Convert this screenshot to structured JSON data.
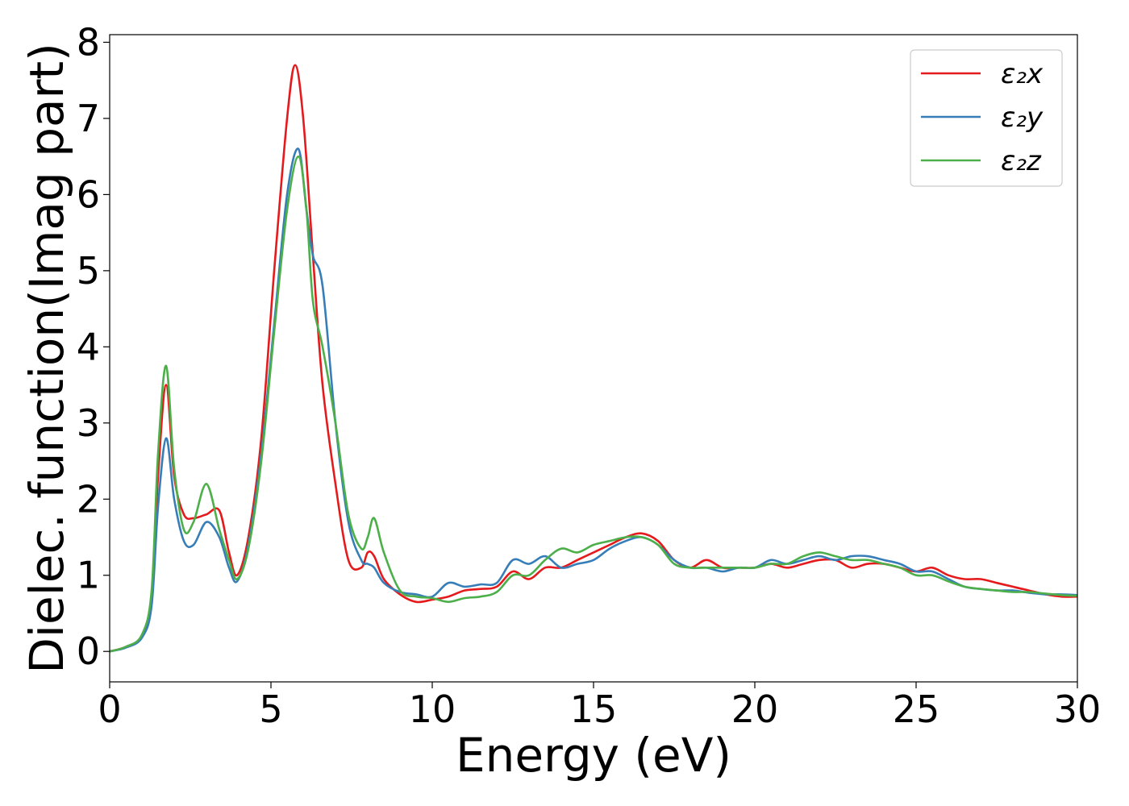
{
  "chart_data": {
    "type": "line",
    "title": "",
    "xlabel": "Energy (eV)",
    "ylabel": "Dielec. function(Imag part)",
    "xlim": [
      0,
      30
    ],
    "ylim": [
      -0.4,
      8.1
    ],
    "xticks": [
      0,
      5,
      10,
      15,
      20,
      25,
      30
    ],
    "yticks": [
      0,
      1,
      2,
      3,
      4,
      5,
      6,
      7,
      8
    ],
    "grid": false,
    "legend_position": "top-right",
    "series": [
      {
        "name": "ε₂x",
        "color": "#e41a1c",
        "x": [
          0,
          0.5,
          1.0,
          1.3,
          1.5,
          1.75,
          2.0,
          2.3,
          2.6,
          3.0,
          3.4,
          3.7,
          3.95,
          4.3,
          4.7,
          5.1,
          5.5,
          5.75,
          6.0,
          6.3,
          6.6,
          7.0,
          7.4,
          7.8,
          8.0,
          8.2,
          8.5,
          9.0,
          9.5,
          10.0,
          10.5,
          11.0,
          11.5,
          12.0,
          12.5,
          13.0,
          13.5,
          14.0,
          14.5,
          15.0,
          15.5,
          16.0,
          16.5,
          17.0,
          17.5,
          18.0,
          18.5,
          19.0,
          19.5,
          20.0,
          20.5,
          21.0,
          21.5,
          22.0,
          22.5,
          23.0,
          23.5,
          24.0,
          24.5,
          25.0,
          25.5,
          26.0,
          26.5,
          27.0,
          27.5,
          28.0,
          28.5,
          29.0,
          29.5,
          30.0
        ],
        "values": [
          0,
          0.06,
          0.2,
          0.7,
          2.3,
          3.5,
          2.3,
          1.8,
          1.75,
          1.8,
          1.85,
          1.3,
          1.0,
          1.5,
          2.8,
          5.0,
          7.0,
          7.7,
          7.0,
          5.2,
          3.5,
          2.2,
          1.2,
          1.1,
          1.3,
          1.25,
          0.95,
          0.75,
          0.65,
          0.68,
          0.72,
          0.8,
          0.82,
          0.85,
          1.05,
          0.95,
          1.1,
          1.1,
          1.2,
          1.3,
          1.4,
          1.5,
          1.55,
          1.45,
          1.2,
          1.1,
          1.2,
          1.1,
          1.1,
          1.1,
          1.15,
          1.1,
          1.15,
          1.2,
          1.2,
          1.1,
          1.15,
          1.15,
          1.1,
          1.05,
          1.1,
          1.0,
          0.95,
          0.95,
          0.9,
          0.85,
          0.8,
          0.75,
          0.72,
          0.72
        ]
      },
      {
        "name": "ε₂y",
        "color": "#377eb8",
        "x": [
          0,
          0.5,
          1.0,
          1.3,
          1.5,
          1.75,
          2.0,
          2.3,
          2.6,
          3.0,
          3.4,
          3.7,
          3.95,
          4.3,
          4.7,
          5.1,
          5.5,
          5.85,
          6.1,
          6.3,
          6.6,
          7.0,
          7.4,
          7.8,
          8.0,
          8.2,
          8.5,
          9.0,
          9.5,
          10.0,
          10.5,
          11.0,
          11.5,
          12.0,
          12.5,
          13.0,
          13.5,
          14.0,
          14.5,
          15.0,
          15.5,
          16.0,
          16.5,
          17.0,
          17.5,
          18.0,
          18.5,
          19.0,
          19.5,
          20.0,
          20.5,
          21.0,
          21.5,
          22.0,
          22.5,
          23.0,
          23.5,
          24.0,
          24.5,
          25.0,
          25.5,
          26.0,
          26.5,
          27.0,
          27.5,
          28.0,
          28.5,
          29.0,
          29.5,
          30.0
        ],
        "values": [
          0,
          0.05,
          0.18,
          0.6,
          1.9,
          2.8,
          2.0,
          1.45,
          1.4,
          1.7,
          1.5,
          1.1,
          0.92,
          1.4,
          2.6,
          4.3,
          6.0,
          6.6,
          5.8,
          5.2,
          4.8,
          3.0,
          1.7,
          1.2,
          1.15,
          1.1,
          0.9,
          0.78,
          0.75,
          0.72,
          0.9,
          0.85,
          0.88,
          0.9,
          1.2,
          1.15,
          1.25,
          1.1,
          1.15,
          1.2,
          1.35,
          1.45,
          1.5,
          1.4,
          1.2,
          1.1,
          1.1,
          1.05,
          1.1,
          1.1,
          1.2,
          1.15,
          1.2,
          1.25,
          1.2,
          1.25,
          1.25,
          1.2,
          1.15,
          1.05,
          1.05,
          0.95,
          0.85,
          0.82,
          0.8,
          0.8,
          0.77,
          0.75,
          0.75,
          0.74
        ]
      },
      {
        "name": "ε₂z",
        "color": "#4daf4a",
        "x": [
          0,
          0.5,
          1.0,
          1.3,
          1.5,
          1.75,
          2.0,
          2.3,
          2.6,
          3.0,
          3.4,
          3.7,
          3.95,
          4.3,
          4.7,
          5.1,
          5.5,
          5.85,
          6.1,
          6.3,
          6.6,
          7.0,
          7.4,
          7.8,
          8.0,
          8.2,
          8.5,
          9.0,
          9.5,
          10.0,
          10.5,
          11.0,
          11.5,
          12.0,
          12.5,
          13.0,
          13.5,
          14.0,
          14.5,
          15.0,
          15.5,
          16.0,
          16.5,
          17.0,
          17.5,
          18.0,
          18.5,
          19.0,
          19.5,
          20.0,
          20.5,
          21.0,
          21.5,
          22.0,
          22.5,
          23.0,
          23.5,
          24.0,
          24.5,
          25.0,
          25.5,
          26.0,
          26.5,
          27.0,
          27.5,
          28.0,
          28.5,
          29.0,
          29.5,
          30.0
        ],
        "values": [
          0,
          0.06,
          0.22,
          0.8,
          2.6,
          3.75,
          2.4,
          1.6,
          1.7,
          2.2,
          1.6,
          1.2,
          0.95,
          1.35,
          2.5,
          4.2,
          5.8,
          6.5,
          5.8,
          4.6,
          4.0,
          3.0,
          1.8,
          1.35,
          1.5,
          1.75,
          1.3,
          0.8,
          0.72,
          0.7,
          0.65,
          0.7,
          0.72,
          0.78,
          1.0,
          1.0,
          1.2,
          1.35,
          1.3,
          1.4,
          1.45,
          1.5,
          1.5,
          1.4,
          1.15,
          1.1,
          1.1,
          1.1,
          1.1,
          1.1,
          1.15,
          1.15,
          1.25,
          1.3,
          1.25,
          1.2,
          1.2,
          1.15,
          1.1,
          1.0,
          1.0,
          0.92,
          0.85,
          0.82,
          0.8,
          0.78,
          0.78,
          0.76,
          0.74,
          0.73
        ]
      }
    ]
  }
}
